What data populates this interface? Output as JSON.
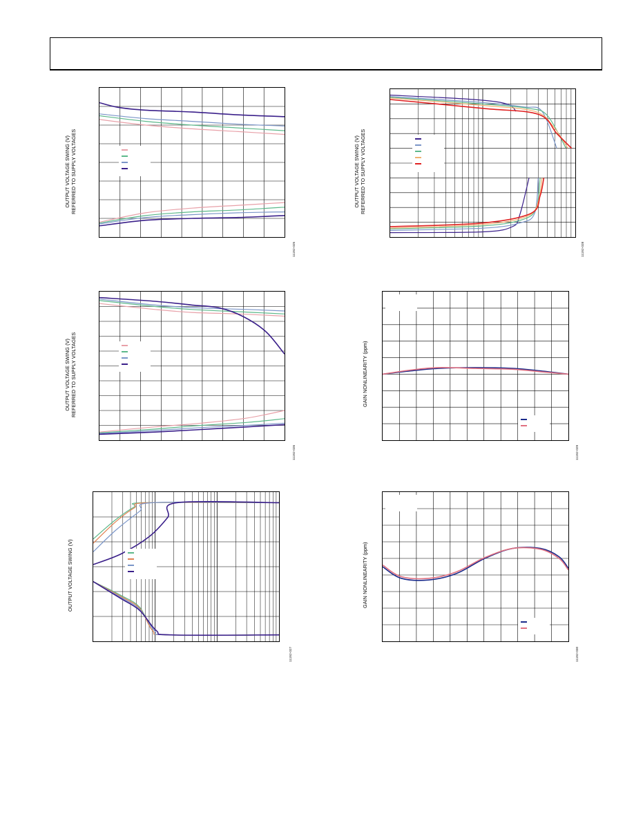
{
  "chart_data": [
    {
      "type": "line",
      "ylabel": "OUTPUT VOLTAGE SWING (V)\nREFERRED TO SUPPLY VOLTAGES",
      "figure_code": "11192-025",
      "grid": {
        "vlines": 8,
        "hlines": 8
      },
      "series": [
        {
          "color": "#e8a0a8",
          "upper": [
            [
              0,
              6.3
            ],
            [
              0.25,
              6.0
            ],
            [
              0.5,
              5.8
            ],
            [
              0.75,
              5.65
            ],
            [
              1,
              5.5
            ]
          ],
          "lower": [
            [
              0,
              0.8
            ],
            [
              0.25,
              1.3
            ],
            [
              0.5,
              1.55
            ],
            [
              0.75,
              1.7
            ],
            [
              1,
              1.85
            ]
          ]
        },
        {
          "color": "#5cb88a",
          "upper": [
            [
              0,
              6.5
            ],
            [
              0.25,
              6.2
            ],
            [
              0.5,
              6.0
            ],
            [
              0.75,
              5.85
            ],
            [
              1,
              5.7
            ]
          ],
          "lower": [
            [
              0,
              0.75
            ],
            [
              0.25,
              1.15
            ],
            [
              0.5,
              1.35
            ],
            [
              0.75,
              1.45
            ],
            [
              1,
              1.6
            ]
          ]
        },
        {
          "color": "#7a95c8",
          "upper": [
            [
              0,
              6.6
            ],
            [
              0.25,
              6.35
            ],
            [
              0.5,
              6.2
            ],
            [
              0.75,
              6.05
            ],
            [
              1,
              5.95
            ]
          ],
          "lower": [
            [
              0,
              0.7
            ],
            [
              0.25,
              1.05
            ],
            [
              0.5,
              1.2
            ],
            [
              0.75,
              1.3
            ],
            [
              1,
              1.35
            ]
          ]
        },
        {
          "color": "#3a1f8a",
          "upper": [
            [
              0,
              7.2
            ],
            [
              0.1,
              6.95
            ],
            [
              0.25,
              6.8
            ],
            [
              0.5,
              6.7
            ],
            [
              0.75,
              6.55
            ],
            [
              1,
              6.45
            ]
          ],
          "lower": [
            [
              0,
              0.6
            ],
            [
              0.25,
              0.9
            ],
            [
              0.5,
              1.0
            ],
            [
              0.75,
              1.05
            ],
            [
              1,
              1.15
            ]
          ]
        }
      ]
    },
    {
      "type": "line",
      "ylabel": "OUTPUT VOLTAGE SWING (V)\nREFERRED TO SUPPLY VOLTAGES",
      "figure_code": "11192-026",
      "grid": {
        "vlines": 8,
        "hlines": 10
      },
      "series": [
        {
          "color": "#e8a0a8",
          "upper": [
            [
              0,
              9.2
            ],
            [
              0.3,
              8.8
            ],
            [
              0.5,
              8.6
            ],
            [
              0.75,
              8.5
            ],
            [
              1,
              8.35
            ]
          ],
          "lower": [
            [
              0,
              0.55
            ],
            [
              0.3,
              0.9
            ],
            [
              0.55,
              1.15
            ],
            [
              0.8,
              1.5
            ],
            [
              1,
              2.0
            ]
          ]
        },
        {
          "color": "#5cb88a",
          "upper": [
            [
              0,
              9.4
            ],
            [
              0.3,
              9.0
            ],
            [
              0.5,
              8.8
            ],
            [
              0.75,
              8.65
            ],
            [
              1,
              8.5
            ]
          ],
          "lower": [
            [
              0,
              0.5
            ],
            [
              0.3,
              0.75
            ],
            [
              0.55,
              1.0
            ],
            [
              0.8,
              1.2
            ],
            [
              1,
              1.45
            ]
          ]
        },
        {
          "color": "#7a95c8",
          "upper": [
            [
              0,
              9.5
            ],
            [
              0.3,
              9.1
            ],
            [
              0.55,
              8.9
            ],
            [
              0.8,
              8.8
            ],
            [
              1,
              8.7
            ]
          ],
          "lower": [
            [
              0,
              0.45
            ],
            [
              0.3,
              0.65
            ],
            [
              0.55,
              0.85
            ],
            [
              0.8,
              1.0
            ],
            [
              1,
              1.15
            ]
          ]
        },
        {
          "color": "#3a1f8a",
          "upper": [
            [
              0,
              9.6
            ],
            [
              0.3,
              9.35
            ],
            [
              0.5,
              9.1
            ],
            [
              0.65,
              8.9
            ],
            [
              0.78,
              8.3
            ],
            [
              0.9,
              7.3
            ],
            [
              1,
              5.8
            ]
          ],
          "lower": [
            [
              0,
              0.4
            ],
            [
              0.3,
              0.55
            ],
            [
              0.55,
              0.72
            ],
            [
              0.8,
              0.9
            ],
            [
              1,
              1.05
            ]
          ]
        }
      ]
    },
    {
      "type": "line",
      "ylabel": "OUTPUT VOLTAGE SWING (V)",
      "figure_code": "11192-027",
      "grid": {
        "vlines_log": 3,
        "hlines": 6
      },
      "series": [
        {
          "color": "#5cb88a",
          "upper": [
            [
              0,
              4.8
            ],
            [
              0.12,
              5.7
            ],
            [
              0.22,
              6.3
            ],
            [
              0.28,
              6.5
            ],
            [
              1,
              6.5
            ]
          ],
          "lower": [
            [
              0,
              2.8
            ],
            [
              0.15,
              2.15
            ],
            [
              0.25,
              1.6
            ],
            [
              0.32,
              0.5
            ],
            [
              0.4,
              0.3
            ],
            [
              1,
              0.3
            ]
          ]
        },
        {
          "color": "#e08050",
          "upper": [
            [
              0,
              4.6
            ],
            [
              0.12,
              5.6
            ],
            [
              0.22,
              6.25
            ],
            [
              0.3,
              6.5
            ],
            [
              1,
              6.5
            ]
          ],
          "lower": [
            [
              0,
              2.8
            ],
            [
              0.15,
              2.1
            ],
            [
              0.25,
              1.55
            ],
            [
              0.32,
              0.5
            ],
            [
              0.4,
              0.3
            ],
            [
              1,
              0.3
            ]
          ]
        },
        {
          "color": "#7a95c8",
          "upper": [
            [
              0,
              4.2
            ],
            [
              0.12,
              5.2
            ],
            [
              0.25,
              6.1
            ],
            [
              0.32,
              6.5
            ],
            [
              1,
              6.5
            ]
          ],
          "lower": [
            [
              0,
              2.8
            ],
            [
              0.15,
              2.05
            ],
            [
              0.25,
              1.5
            ],
            [
              0.33,
              0.5
            ],
            [
              0.4,
              0.3
            ],
            [
              1,
              0.3
            ]
          ]
        },
        {
          "color": "#3a1f8a",
          "upper": [
            [
              0,
              3.6
            ],
            [
              0.15,
              4.1
            ],
            [
              0.3,
              4.9
            ],
            [
              0.4,
              5.8
            ],
            [
              0.45,
              6.5
            ],
            [
              1,
              6.5
            ]
          ],
          "lower": [
            [
              0,
              2.8
            ],
            [
              0.15,
              2.0
            ],
            [
              0.25,
              1.45
            ],
            [
              0.34,
              0.5
            ],
            [
              0.42,
              0.3
            ],
            [
              1,
              0.3
            ]
          ]
        }
      ]
    },
    {
      "type": "line",
      "ylabel": "OUTPUT VOLTAGE SWING (V)\nREFERRED TO SUPPLY VOLTAGES",
      "figure_code": "11192-028",
      "grid": {
        "vlines_log": 2,
        "hlines": 10
      },
      "series": [
        {
          "color": "#3a1f8a",
          "upper": [
            [
              0,
              9.6
            ],
            [
              0.45,
              9.3
            ],
            [
              0.63,
              9.0
            ],
            [
              0.68,
              8.5
            ]
          ],
          "lower": [
            [
              0,
              0.3
            ],
            [
              0.5,
              0.35
            ],
            [
              0.66,
              0.7
            ],
            [
              0.7,
              1.5
            ],
            [
              0.75,
              4.0
            ]
          ]
        },
        {
          "color": "#7a95c8",
          "upper": [
            [
              0,
              9.5
            ],
            [
              0.5,
              9.1
            ],
            [
              0.72,
              8.8
            ],
            [
              0.82,
              8.5
            ],
            [
              0.9,
              6.0
            ]
          ],
          "lower": [
            [
              0,
              0.45
            ],
            [
              0.5,
              0.6
            ],
            [
              0.7,
              0.95
            ],
            [
              0.78,
              1.6
            ],
            [
              0.8,
              4.0
            ]
          ]
        },
        {
          "color": "#5cb88a",
          "upper": [
            [
              0,
              9.45
            ],
            [
              0.5,
              9.0
            ],
            [
              0.75,
              8.7
            ],
            [
              0.85,
              8.2
            ],
            [
              0.95,
              6.0
            ]
          ],
          "lower": [
            [
              0,
              0.55
            ],
            [
              0.5,
              0.75
            ],
            [
              0.72,
              1.2
            ],
            [
              0.79,
              2.0
            ],
            [
              0.81,
              4.0
            ]
          ]
        },
        {
          "color": "#f0b070",
          "upper": [
            [
              0,
              9.4
            ],
            [
              0.5,
              8.9
            ],
            [
              0.78,
              8.5
            ],
            [
              0.88,
              7.5
            ],
            [
              0.96,
              6.0
            ]
          ],
          "lower": [
            [
              0,
              0.6
            ],
            [
              0.5,
              0.85
            ],
            [
              0.74,
              1.4
            ],
            [
              0.8,
              2.4
            ],
            [
              0.82,
              4.0
            ]
          ]
        },
        {
          "color": "#e02020",
          "upper": [
            [
              0,
              9.3
            ],
            [
              0.5,
              8.7
            ],
            [
              0.8,
              8.3
            ],
            [
              0.9,
              7.0
            ],
            [
              0.98,
              6.0
            ]
          ],
          "lower": [
            [
              0,
              0.7
            ],
            [
              0.5,
              0.95
            ],
            [
              0.76,
              1.6
            ],
            [
              0.81,
              2.8
            ],
            [
              0.83,
              4.0
            ]
          ]
        }
      ]
    },
    {
      "type": "line",
      "ylabel": "GAIN NONLINEARITY (ppm)",
      "figure_code": "11192-029",
      "grid": {
        "vlines": 10,
        "hlines": 9
      },
      "series": [
        {
          "color": "#1a2a8a",
          "values": [
            [
              0,
              4.0
            ],
            [
              0.15,
              4.2
            ],
            [
              0.3,
              4.35
            ],
            [
              0.5,
              4.4
            ],
            [
              0.7,
              4.35
            ],
            [
              0.85,
              4.2
            ],
            [
              1,
              4.0
            ]
          ]
        },
        {
          "color": "#e07080",
          "values": [
            [
              0,
              4.0
            ],
            [
              0.15,
              4.25
            ],
            [
              0.3,
              4.4
            ],
            [
              0.5,
              4.35
            ],
            [
              0.7,
              4.3
            ],
            [
              0.85,
              4.15
            ],
            [
              1,
              4.0
            ]
          ]
        }
      ]
    },
    {
      "type": "line",
      "ylabel": "GAIN NONLINEARITY (ppm)",
      "figure_code": "11192-030",
      "grid": {
        "vlines": 10,
        "hlines": 9
      },
      "series": [
        {
          "color": "#1a2a8a",
          "values": [
            [
              0,
              4.5
            ],
            [
              0.1,
              3.8
            ],
            [
              0.25,
              3.7
            ],
            [
              0.4,
              4.1
            ],
            [
              0.55,
              5.0
            ],
            [
              0.7,
              5.6
            ],
            [
              0.85,
              5.6
            ],
            [
              0.95,
              5.1
            ],
            [
              1,
              4.4
            ]
          ]
        },
        {
          "color": "#e07080",
          "values": [
            [
              0,
              4.6
            ],
            [
              0.1,
              3.9
            ],
            [
              0.25,
              3.8
            ],
            [
              0.4,
              4.2
            ],
            [
              0.55,
              5.05
            ],
            [
              0.7,
              5.6
            ],
            [
              0.85,
              5.55
            ],
            [
              0.95,
              5.0
            ],
            [
              1,
              4.3
            ]
          ]
        }
      ]
    }
  ]
}
